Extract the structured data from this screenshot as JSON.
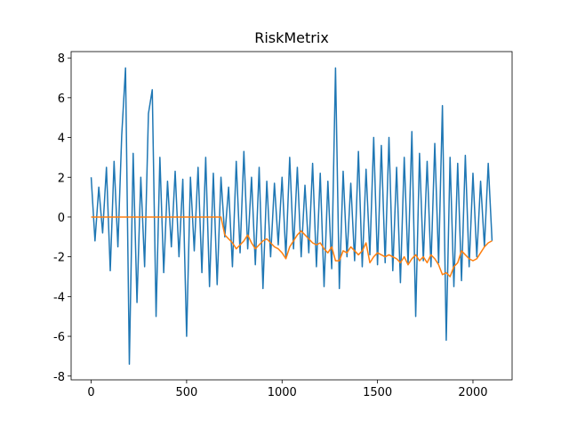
{
  "chart_data": {
    "type": "line",
    "title": "RiskMetrix",
    "x": [
      0,
      20,
      40,
      60,
      80,
      100,
      120,
      140,
      160,
      180,
      200,
      220,
      240,
      260,
      280,
      300,
      320,
      340,
      360,
      380,
      400,
      420,
      440,
      460,
      480,
      500,
      520,
      540,
      560,
      580,
      600,
      620,
      640,
      660,
      680,
      700,
      720,
      740,
      760,
      780,
      800,
      820,
      840,
      860,
      880,
      900,
      920,
      940,
      960,
      980,
      1000,
      1020,
      1040,
      1060,
      1080,
      1100,
      1120,
      1140,
      1160,
      1180,
      1200,
      1220,
      1240,
      1260,
      1280,
      1300,
      1320,
      1340,
      1360,
      1380,
      1400,
      1420,
      1440,
      1460,
      1480,
      1500,
      1520,
      1540,
      1560,
      1580,
      1600,
      1620,
      1640,
      1660,
      1680,
      1700,
      1720,
      1740,
      1760,
      1780,
      1800,
      1820,
      1840,
      1860,
      1880,
      1900,
      1920,
      1940,
      1960,
      1980,
      2000,
      2020,
      2040,
      2060,
      2080,
      2100
    ],
    "series": [
      {
        "color": "#1f77b4",
        "values": [
          2.0,
          -1.2,
          1.5,
          -0.8,
          2.5,
          -2.7,
          2.8,
          -1.5,
          4.1,
          7.5,
          -7.4,
          3.2,
          -4.3,
          2.0,
          -2.5,
          5.2,
          6.4,
          -5.0,
          3.0,
          -2.8,
          1.8,
          -1.5,
          2.3,
          -2.0,
          1.9,
          -6.0,
          2.0,
          -1.7,
          2.5,
          -2.8,
          3.0,
          -3.5,
          2.2,
          -3.4,
          2.0,
          -1.0,
          1.5,
          -2.5,
          2.8,
          -1.8,
          3.3,
          -1.6,
          2.0,
          -2.4,
          2.5,
          -3.6,
          1.8,
          -2.0,
          1.7,
          -1.4,
          2.0,
          -2.0,
          3.0,
          -1.6,
          2.5,
          -2.0,
          1.6,
          -1.8,
          2.7,
          -2.5,
          2.2,
          -3.5,
          1.8,
          -2.6,
          7.5,
          -3.6,
          2.3,
          -2.0,
          1.7,
          -2.2,
          3.3,
          -2.5,
          2.4,
          -1.9,
          4.0,
          -2.4,
          3.6,
          -2.3,
          4.0,
          -2.7,
          2.5,
          -3.3,
          3.0,
          -2.4,
          4.3,
          -5.0,
          3.2,
          -2.2,
          2.8,
          -2.5,
          3.7,
          -2.3,
          5.6,
          -6.2,
          3.0,
          -3.5,
          2.7,
          -3.2,
          3.1,
          -2.5,
          2.2,
          -2.0,
          1.8,
          -1.5,
          2.7,
          -1.2
        ]
      },
      {
        "color": "#ff7f0e",
        "values": [
          0,
          0,
          0,
          0,
          0,
          0,
          0,
          0,
          0,
          0,
          0,
          0,
          0,
          0,
          0,
          0,
          0,
          0,
          0,
          0,
          0,
          0,
          0,
          0,
          0,
          0,
          0,
          0,
          0,
          0,
          0,
          0,
          0,
          0,
          0,
          -0.9,
          -1.1,
          -1.3,
          -1.6,
          -1.4,
          -1.2,
          -0.9,
          -1.3,
          -1.6,
          -1.4,
          -1.2,
          -1.1,
          -1.3,
          -1.5,
          -1.6,
          -1.8,
          -2.1,
          -1.5,
          -1.2,
          -0.9,
          -0.7,
          -0.9,
          -1.1,
          -1.3,
          -1.4,
          -1.3,
          -1.6,
          -1.8,
          -1.5,
          -2.2,
          -2.2,
          -1.7,
          -1.8,
          -1.5,
          -1.7,
          -1.9,
          -1.7,
          -1.3,
          -2.3,
          -2.0,
          -1.8,
          -1.9,
          -2.0,
          -1.9,
          -2.0,
          -2.1,
          -2.3,
          -2.0,
          -2.4,
          -2.1,
          -1.9,
          -2.2,
          -2.0,
          -2.3,
          -1.9,
          -2.1,
          -2.4,
          -2.9,
          -2.8,
          -3.0,
          -2.5,
          -2.3,
          -1.7,
          -1.9,
          -2.1,
          -2.2,
          -2.1,
          -1.8,
          -1.5,
          -1.3,
          -1.2
        ]
      }
    ],
    "xlim": [
      -105,
      2205
    ],
    "ylim": [
      -8.19,
      8.32
    ],
    "xticks": [
      0,
      500,
      1000,
      1500,
      2000
    ],
    "yticks": [
      -8,
      -6,
      -4,
      -2,
      0,
      2,
      4,
      6,
      8
    ]
  }
}
